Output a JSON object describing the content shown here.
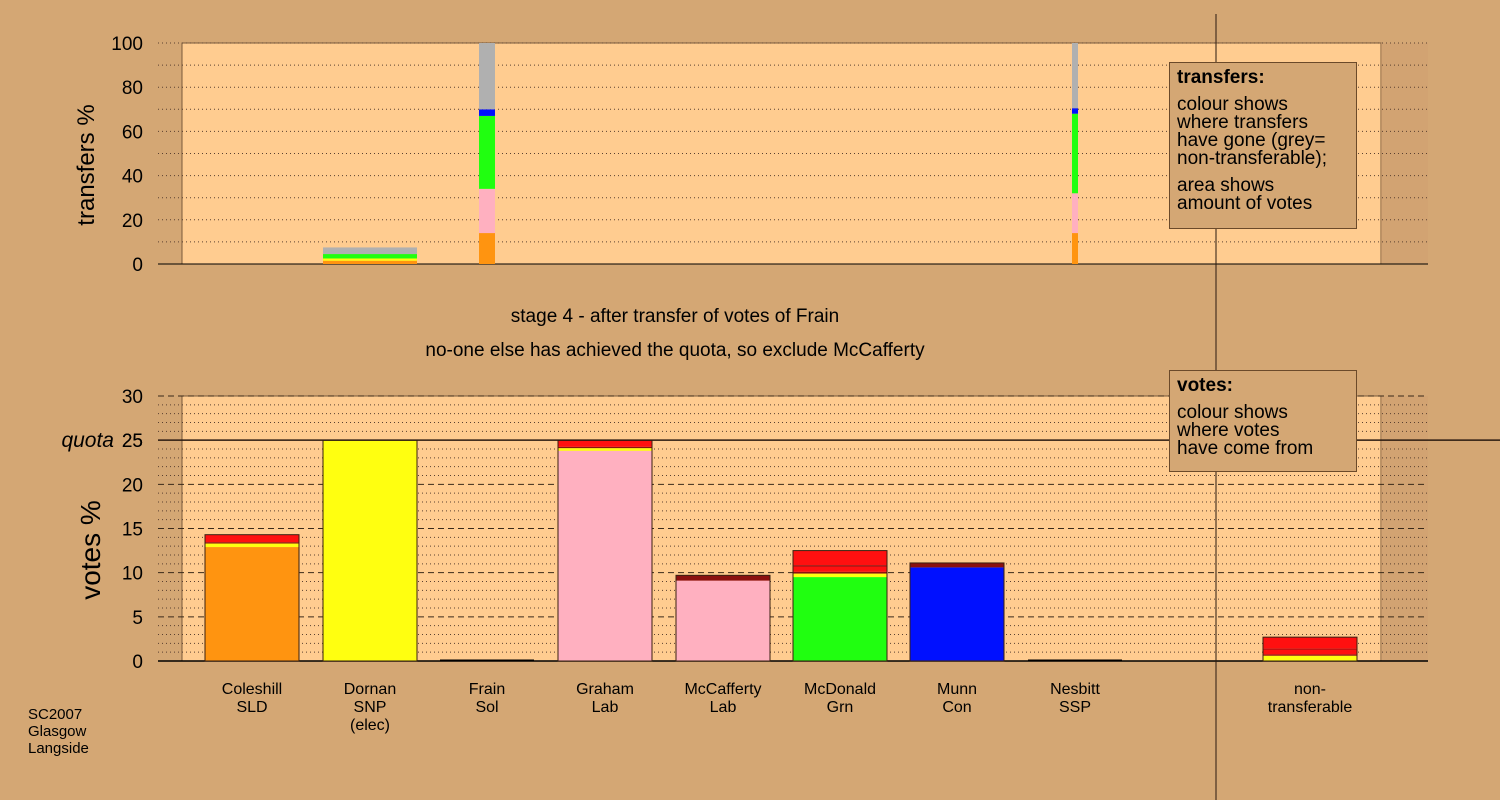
{
  "page": {
    "background": "#d4a774",
    "stage_heading": "stage 4 - after transfer of votes of Frain",
    "stage_subheading": "no-one else has achieved the quota, so exclude McCafferty",
    "footer": [
      "SC2007",
      "Glasgow",
      "Langside"
    ]
  },
  "legend_transfers": {
    "heading": "transfers:",
    "lines1": [
      "colour shows",
      "where transfers",
      "have gone (grey=",
      "non-transferable);"
    ],
    "lines2": [
      "area shows",
      "amount of votes"
    ]
  },
  "legend_votes": {
    "heading": "votes:",
    "lines": [
      "colour shows",
      "where votes",
      "have come from"
    ]
  },
  "colors": {
    "SLD": "#ff9410",
    "SNP": "#ffff10",
    "Lab": "#ffb0c0",
    "Grn": "#20ff10",
    "Con": "#0010ff",
    "SSP": "#ff1010",
    "SSP_dark": "#8b1010",
    "nontransferable": "#b0b0b0",
    "plot_bg": "#ffcc90"
  },
  "chart_data": [
    {
      "type": "bar",
      "stacked": true,
      "ylabel": "transfers %",
      "ylim": [
        0,
        100
      ],
      "yticks": [
        0,
        20,
        40,
        60,
        80,
        100
      ],
      "grid": "dotted",
      "bars": [
        {
          "column": "Dornan SNP",
          "width_fraction": 0.08,
          "segments": [
            {
              "party": "SLD",
              "value": 1.5
            },
            {
              "party": "SNP",
              "value": 1.0
            },
            {
              "party": "Grn",
              "value": 2.0
            },
            {
              "party": "nontransferable",
              "value": 3.0
            }
          ]
        },
        {
          "column": "Frain Sol",
          "width_fraction": 0.17,
          "segments": [
            {
              "party": "SLD",
              "value": 14
            },
            {
              "party": "Lab",
              "value": 20
            },
            {
              "party": "Grn",
              "value": 33
            },
            {
              "party": "Con",
              "value": 3
            },
            {
              "party": "nontransferable",
              "value": 30
            }
          ]
        },
        {
          "column": "Nesbitt SSP",
          "width_fraction": 0.06,
          "segments": [
            {
              "party": "SLD",
              "value": 14
            },
            {
              "party": "Lab",
              "value": 18
            },
            {
              "party": "Grn",
              "value": 36
            },
            {
              "party": "Con",
              "value": 2.5
            },
            {
              "party": "nontransferable",
              "value": 29.5
            }
          ]
        }
      ]
    },
    {
      "type": "bar",
      "stacked": true,
      "ylabel": "votes %",
      "ylim": [
        0,
        30
      ],
      "yticks": [
        0,
        5,
        10,
        15,
        20,
        25,
        30
      ],
      "grid": "dashed",
      "quota": {
        "label": "quota",
        "value": 25
      },
      "categories": [
        {
          "lines": [
            "Coleshill",
            "SLD"
          ]
        },
        {
          "lines": [
            "Dornan",
            "SNP",
            "(elec)"
          ]
        },
        {
          "lines": [
            "Frain",
            "Sol"
          ]
        },
        {
          "lines": [
            "Graham",
            "Lab"
          ]
        },
        {
          "lines": [
            "McCafferty",
            "Lab"
          ]
        },
        {
          "lines": [
            "McDonald",
            "Grn"
          ]
        },
        {
          "lines": [
            "Munn",
            "Con"
          ]
        },
        {
          "lines": [
            "Nesbitt",
            "SSP"
          ]
        },
        {
          "lines": [
            "non-",
            "transferable"
          ]
        }
      ],
      "stacks": [
        [
          {
            "party": "SLD",
            "value": 12.9
          },
          {
            "party": "SNP",
            "value": 0.4
          },
          {
            "party": "SSP_dark",
            "value": 0.15
          },
          {
            "party": "SSP",
            "value": 0.85
          }
        ],
        [
          {
            "party": "SNP",
            "value": 25.0
          }
        ],
        [],
        [
          {
            "party": "Lab",
            "value": 23.8
          },
          {
            "party": "SNP",
            "value": 0.3
          },
          {
            "party": "SSP_dark",
            "value": 0.15
          },
          {
            "party": "SSP",
            "value": 0.75
          }
        ],
        [
          {
            "party": "Lab",
            "value": 9.1
          },
          {
            "party": "SSP_dark",
            "value": 0.6
          }
        ],
        [
          {
            "party": "Grn",
            "value": 9.5
          },
          {
            "party": "SNP",
            "value": 0.4
          },
          {
            "party": "SSP_dark",
            "value": 0.2
          },
          {
            "party": "SSP",
            "value": 0.6
          },
          {
            "party": "SSP_dark",
            "value": 0.15
          },
          {
            "party": "SSP",
            "value": 1.65
          }
        ],
        [
          {
            "party": "Con",
            "value": 10.6
          },
          {
            "party": "SSP_dark",
            "value": 0.5
          }
        ],
        [],
        [
          {
            "party": "SNP",
            "value": 0.6
          },
          {
            "party": "SSP_dark",
            "value": 0.15
          },
          {
            "party": "SSP",
            "value": 0.55
          },
          {
            "party": "SSP_dark",
            "value": 0.1
          },
          {
            "party": "SSP",
            "value": 1.3
          }
        ]
      ]
    }
  ]
}
